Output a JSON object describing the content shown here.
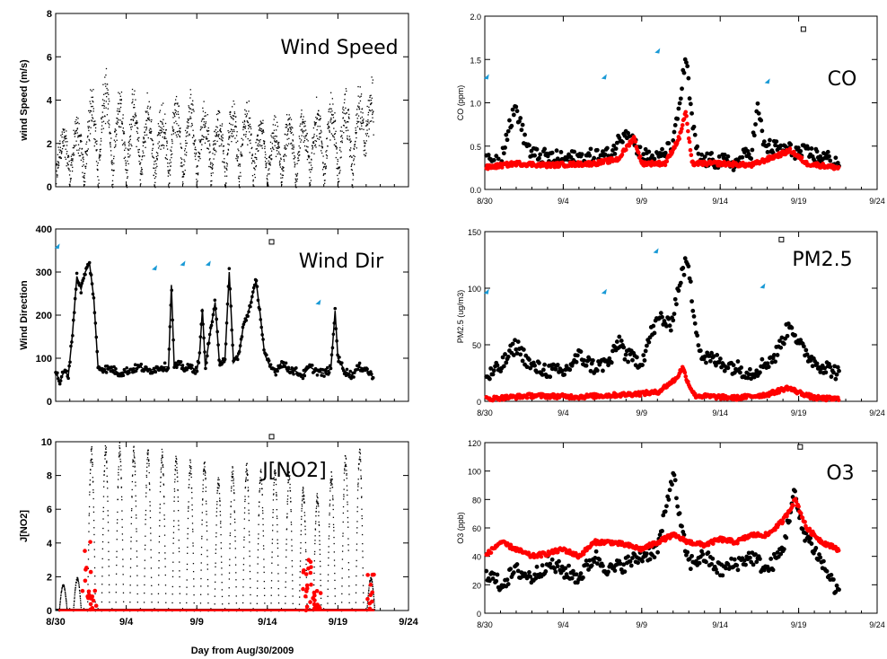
{
  "figure": {
    "x_axis_label": "Day from Aug/30/2009"
  },
  "colors": {
    "black_series": "#000000",
    "red_series": "#ff0000",
    "marker_blue": "#1a9ad6"
  },
  "chart_data": [
    {
      "id": "wind_speed",
      "type": "scatter",
      "title": "Wind Speed",
      "ylabel": "wind Speed (m/s)",
      "xlabel": "",
      "x_tick_labels": [],
      "ylim": [
        0,
        8
      ],
      "y_ticks": [
        0,
        2,
        4,
        6,
        8
      ],
      "xlim": [
        0,
        25
      ],
      "series": [
        {
          "color": "#000000",
          "pattern": "diurnal",
          "x_start": 0,
          "x_end": 22.5,
          "base": 0.4,
          "peaks": [
            2.2,
            2.6,
            4.0,
            4.6,
            4.3,
            3.8,
            3.5,
            3.2,
            3.6,
            3.8,
            3.3,
            3.1,
            3.4,
            3.5,
            2.6,
            2.4,
            2.8,
            3.0,
            3.4,
            3.6,
            3.8,
            4.0,
            4.5
          ],
          "peak_positions": [
            0.5,
            1.5,
            2.5,
            3.5,
            4.5,
            5.5,
            6.5,
            7.5,
            8.5,
            9.5,
            10.5,
            11.5,
            12.5,
            13.5,
            14.5,
            15.5,
            16.5,
            17.5,
            18.5,
            19.5,
            20.5,
            21.5,
            22.3
          ]
        }
      ]
    },
    {
      "id": "wind_dir",
      "type": "line",
      "title": "Wind Dir",
      "ylabel": "Wind Direction",
      "xlabel": "",
      "x_tick_labels": [],
      "ylim": [
        0,
        400
      ],
      "y_ticks": [
        0,
        100,
        200,
        300,
        400
      ],
      "xlim": [
        0,
        25
      ],
      "series": [
        {
          "color": "#000000",
          "points": [
            [
              0.0,
              70
            ],
            [
              0.3,
              45
            ],
            [
              0.6,
              70
            ],
            [
              0.9,
              60
            ],
            [
              1.2,
              160
            ],
            [
              1.5,
              290
            ],
            [
              1.8,
              260
            ],
            [
              2.1,
              300
            ],
            [
              2.4,
              320
            ],
            [
              2.7,
              240
            ],
            [
              3.0,
              80
            ],
            [
              3.5,
              75
            ],
            [
              4.0,
              75
            ],
            [
              4.5,
              65
            ],
            [
              5.0,
              70
            ],
            [
              5.5,
              75
            ],
            [
              6.0,
              80
            ],
            [
              6.5,
              70
            ],
            [
              7.0,
              75
            ],
            [
              7.5,
              80
            ],
            [
              8.0,
              80
            ],
            [
              8.2,
              270
            ],
            [
              8.4,
              80
            ],
            [
              8.8,
              85
            ],
            [
              9.2,
              75
            ],
            [
              9.6,
              80
            ],
            [
              10.0,
              70
            ],
            [
              10.2,
              110
            ],
            [
              10.4,
              215
            ],
            [
              10.6,
              80
            ],
            [
              11.0,
              170
            ],
            [
              11.3,
              230
            ],
            [
              11.6,
              90
            ],
            [
              12.0,
              100
            ],
            [
              12.3,
              300
            ],
            [
              12.6,
              90
            ],
            [
              13.0,
              110
            ],
            [
              13.3,
              175
            ],
            [
              13.6,
              200
            ],
            [
              13.9,
              240
            ],
            [
              14.2,
              280
            ],
            [
              14.5,
              200
            ],
            [
              14.8,
              110
            ],
            [
              15.2,
              80
            ],
            [
              15.6,
              70
            ],
            [
              16.0,
              90
            ],
            [
              16.5,
              75
            ],
            [
              17.0,
              70
            ],
            [
              17.5,
              60
            ],
            [
              18.0,
              80
            ],
            [
              18.5,
              70
            ],
            [
              19.0,
              65
            ],
            [
              19.5,
              75
            ],
            [
              19.8,
              210
            ],
            [
              20.0,
              100
            ],
            [
              20.5,
              70
            ],
            [
              21.0,
              60
            ],
            [
              21.5,
              80
            ],
            [
              22.0,
              75
            ],
            [
              22.5,
              55
            ]
          ]
        }
      ],
      "markers_blue": [
        [
          0.1,
          360
        ],
        [
          7.0,
          310
        ],
        [
          9.0,
          320
        ],
        [
          10.8,
          320
        ],
        [
          18.6,
          230
        ]
      ],
      "marker_open": [
        [
          15.3,
          370
        ]
      ]
    },
    {
      "id": "jno2",
      "type": "scatter",
      "title": "J[NO2]",
      "ylabel": "J[NO2]",
      "xlabel": "Day from Aug/30/2009",
      "x_tick_labels": [
        "8/30",
        "9/4",
        "9/9",
        "9/14",
        "9/19",
        "9/24"
      ],
      "ylim": [
        0,
        10
      ],
      "y_ticks": [
        0,
        2,
        4,
        6,
        8,
        10
      ],
      "xlim": [
        0,
        25
      ],
      "series": [
        {
          "color": "#000000",
          "pattern": "spikes",
          "peak_positions": [
            0.5,
            1.5,
            2.5,
            3.5,
            4.5,
            5.5,
            6.5,
            7.5,
            8.5,
            9.5,
            10.5,
            11.5,
            12.5,
            13.5,
            14.5,
            15.5,
            16.5,
            17.5,
            18.5,
            19.5,
            20.5,
            21.5,
            22.3
          ],
          "peaks": [
            1.6,
            2.0,
            9.8,
            10.0,
            10.0,
            9.8,
            9.7,
            9.6,
            9.3,
            9.0,
            9.0,
            8.0,
            8.6,
            8.8,
            8.5,
            8.6,
            8.4,
            7.4,
            7.0,
            8.3,
            9.4,
            9.7,
            2.0
          ]
        },
        {
          "color": "#ff0000",
          "pattern": "baseline_clusters",
          "clusters": [
            [
              2.2,
              5.0
            ],
            [
              2.6,
              1.2
            ],
            [
              17.8,
              2.5
            ],
            [
              18.2,
              3.0
            ],
            [
              18.6,
              1.2
            ],
            [
              22.4,
              2.2
            ]
          ]
        }
      ],
      "marker_open": [
        [
          15.3,
          10.3
        ]
      ]
    },
    {
      "id": "co",
      "type": "scatter",
      "title": "CO",
      "ylabel": "CO (ppm)",
      "xlabel": "",
      "x_tick_labels": [
        "8/30",
        "9/4",
        "9/9",
        "9/14",
        "9/19",
        "9/24"
      ],
      "ylim": [
        0,
        2.0
      ],
      "y_ticks": [
        0.0,
        0.5,
        1.0,
        1.5,
        2.0
      ],
      "xlim": [
        0,
        25
      ],
      "series": [
        {
          "color": "#000000",
          "baseline": [
            [
              0,
              0.3
            ],
            [
              1.0,
              0.35
            ],
            [
              1.5,
              0.7
            ],
            [
              2.0,
              0.95
            ],
            [
              2.5,
              0.6
            ],
            [
              3.0,
              0.4
            ],
            [
              5.0,
              0.35
            ],
            [
              8.0,
              0.4
            ],
            [
              9.0,
              0.7
            ],
            [
              10.0,
              0.4
            ],
            [
              11.0,
              0.35
            ],
            [
              12.0,
              0.5
            ],
            [
              12.5,
              1.1
            ],
            [
              12.8,
              1.55
            ],
            [
              13.2,
              0.8
            ],
            [
              13.6,
              0.35
            ],
            [
              16.0,
              0.3
            ],
            [
              17.0,
              0.45
            ],
            [
              17.4,
              0.95
            ],
            [
              17.8,
              0.5
            ],
            [
              19.5,
              0.45
            ],
            [
              21.0,
              0.4
            ],
            [
              22.0,
              0.35
            ],
            [
              22.5,
              0.3
            ]
          ]
        },
        {
          "color": "#ff0000",
          "baseline": [
            [
              0,
              0.25
            ],
            [
              2.0,
              0.3
            ],
            [
              4.0,
              0.28
            ],
            [
              7.0,
              0.3
            ],
            [
              8.5,
              0.35
            ],
            [
              9.5,
              0.6
            ],
            [
              10.0,
              0.3
            ],
            [
              11.5,
              0.3
            ],
            [
              12.4,
              0.6
            ],
            [
              12.8,
              0.9
            ],
            [
              13.2,
              0.3
            ],
            [
              15.0,
              0.3
            ],
            [
              17.0,
              0.28
            ],
            [
              19.5,
              0.45
            ],
            [
              20.5,
              0.3
            ],
            [
              22.5,
              0.25
            ]
          ]
        }
      ],
      "markers_blue": [
        [
          0.1,
          1.3
        ],
        [
          7.6,
          1.3
        ],
        [
          11.0,
          1.6
        ],
        [
          18.0,
          1.25
        ]
      ],
      "marker_open": [
        [
          20.3,
          1.85
        ]
      ]
    },
    {
      "id": "pm25",
      "type": "scatter",
      "title": "PM2.5",
      "ylabel": "PM2.5 (ug/m3)",
      "xlabel": "",
      "x_tick_labels": [
        "8/30",
        "9/4",
        "9/9",
        "9/14",
        "9/19",
        "9/24"
      ],
      "ylim": [
        0,
        150
      ],
      "y_ticks": [
        0,
        50,
        100,
        150
      ],
      "xlim": [
        0,
        25
      ],
      "series": [
        {
          "color": "#000000",
          "baseline": [
            [
              0,
              20
            ],
            [
              1.0,
              30
            ],
            [
              2.0,
              50
            ],
            [
              3.0,
              30
            ],
            [
              5.0,
              25
            ],
            [
              6.0,
              40
            ],
            [
              7.0,
              30
            ],
            [
              8.0,
              35
            ],
            [
              8.6,
              55
            ],
            [
              9.0,
              40
            ],
            [
              10.0,
              35
            ],
            [
              10.6,
              60
            ],
            [
              11.2,
              75
            ],
            [
              11.8,
              65
            ],
            [
              12.5,
              110
            ],
            [
              12.9,
              125
            ],
            [
              13.3,
              80
            ],
            [
              13.8,
              40
            ],
            [
              16.0,
              30
            ],
            [
              17.0,
              25
            ],
            [
              18.5,
              40
            ],
            [
              19.5,
              70
            ],
            [
              20.0,
              50
            ],
            [
              21.0,
              35
            ],
            [
              22.5,
              25
            ]
          ]
        },
        {
          "color": "#ff0000",
          "baseline": [
            [
              0,
              2
            ],
            [
              3.0,
              5
            ],
            [
              6.0,
              4
            ],
            [
              9.0,
              6
            ],
            [
              11.0,
              8
            ],
            [
              12.2,
              20
            ],
            [
              12.6,
              30
            ],
            [
              13.0,
              15
            ],
            [
              13.4,
              5
            ],
            [
              16.0,
              3
            ],
            [
              18.0,
              6
            ],
            [
              19.3,
              12
            ],
            [
              20.0,
              8
            ],
            [
              21.0,
              3
            ],
            [
              22.5,
              2
            ]
          ]
        }
      ],
      "markers_blue": [
        [
          0.1,
          97
        ],
        [
          7.6,
          97
        ],
        [
          10.9,
          133
        ],
        [
          17.7,
          102
        ]
      ],
      "marker_open": [
        [
          18.9,
          143
        ]
      ]
    },
    {
      "id": "o3",
      "type": "scatter",
      "title": "O3",
      "ylabel": "O3 (ppb)",
      "xlabel": "",
      "x_tick_labels": [
        "8/30",
        "9/4",
        "9/9",
        "9/14",
        "9/19",
        "9/24"
      ],
      "ylim": [
        0,
        120
      ],
      "y_ticks": [
        0,
        20,
        40,
        60,
        80,
        100,
        120
      ],
      "xlim": [
        0,
        25
      ],
      "series": [
        {
          "color": "#000000",
          "baseline": [
            [
              0,
              30
            ],
            [
              1.0,
              20
            ],
            [
              2.0,
              30
            ],
            [
              3.0,
              25
            ],
            [
              4.0,
              35
            ],
            [
              5.0,
              30
            ],
            [
              6.0,
              25
            ],
            [
              7.0,
              40
            ],
            [
              8.0,
              30
            ],
            [
              9.0,
              35
            ],
            [
              10.0,
              40
            ],
            [
              11.0,
              45
            ],
            [
              11.5,
              70
            ],
            [
              12.0,
              100
            ],
            [
              12.5,
              60
            ],
            [
              13.0,
              35
            ],
            [
              14.0,
              40
            ],
            [
              15.0,
              30
            ],
            [
              16.0,
              35
            ],
            [
              17.0,
              40
            ],
            [
              18.0,
              30
            ],
            [
              19.0,
              45
            ],
            [
              19.7,
              85
            ],
            [
              20.2,
              60
            ],
            [
              21.0,
              45
            ],
            [
              22.0,
              25
            ],
            [
              22.5,
              15
            ]
          ]
        },
        {
          "color": "#ff0000",
          "baseline": [
            [
              0,
              40
            ],
            [
              1.0,
              50
            ],
            [
              2.0,
              45
            ],
            [
              3.0,
              40
            ],
            [
              4.0,
              42
            ],
            [
              5.0,
              45
            ],
            [
              6.0,
              40
            ],
            [
              7.0,
              50
            ],
            [
              8.0,
              50
            ],
            [
              9.0,
              48
            ],
            [
              10.0,
              45
            ],
            [
              11.0,
              50
            ],
            [
              12.0,
              55
            ],
            [
              13.0,
              50
            ],
            [
              14.0,
              48
            ],
            [
              15.0,
              52
            ],
            [
              16.0,
              50
            ],
            [
              17.0,
              55
            ],
            [
              18.0,
              55
            ],
            [
              19.0,
              65
            ],
            [
              19.8,
              80
            ],
            [
              20.5,
              60
            ],
            [
              21.5,
              50
            ],
            [
              22.5,
              45
            ]
          ]
        }
      ],
      "marker_open": [
        [
          20.1,
          117
        ]
      ]
    }
  ]
}
